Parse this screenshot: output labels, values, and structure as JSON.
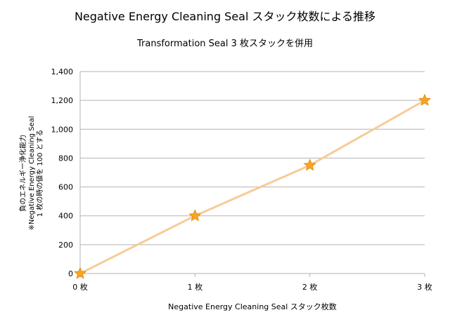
{
  "chart_data": {
    "type": "line",
    "title": "Negative Energy Cleaning Seal  スタック枚数による推移",
    "subtitle": "Transformation Seal 3 枚スタックを併用",
    "xlabel": "Negative Energy Cleaning Seal  スタック枚数",
    "ylabel_lines": [
      "負のエネルギー浄化能力",
      "※Negative Energy Cleaning Seal",
      "1 枚の時の値を  100  とする"
    ],
    "categories": [
      "0 枚",
      "1 枚",
      "2 枚",
      "3 枚"
    ],
    "series": [
      {
        "values": [
          0,
          400,
          750,
          1200
        ]
      }
    ],
    "ylim": [
      0,
      1400
    ],
    "yticks": [
      "0",
      "200",
      "400",
      "600",
      "800",
      "1,000",
      "1,200",
      "1,400"
    ],
    "grid": true,
    "legend": "none",
    "marker": "star",
    "colors": {
      "line": "#F6CC97",
      "marker_fill": "#F8A51F",
      "marker_stroke": "#E08A10",
      "grid": "#B3B3B3"
    }
  }
}
